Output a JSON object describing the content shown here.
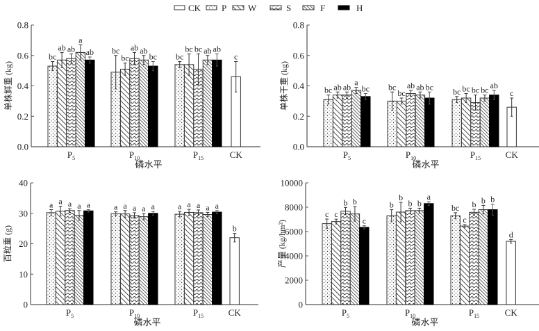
{
  "legend": {
    "items": [
      {
        "label": "CK",
        "pattern": "blank"
      },
      {
        "label": "P",
        "pattern": "dots"
      },
      {
        "label": "W",
        "pattern": "diag"
      },
      {
        "label": "S",
        "pattern": "wave"
      },
      {
        "label": "F",
        "pattern": "diagdense"
      },
      {
        "label": "H",
        "pattern": "solid"
      }
    ]
  },
  "colors": {
    "axis": "#555555",
    "bar_stroke": "#333333",
    "solid": "#000000"
  },
  "chart_data": [
    {
      "type": "bar",
      "ylabel": "单株鲜重 (kg)",
      "xlabel": "磷水平",
      "ylim": [
        0,
        0.8
      ],
      "yticks": [
        "0.0",
        "0.2",
        "0.4",
        "0.6",
        "0.8"
      ],
      "ytick_values": [
        0,
        0.2,
        0.4,
        0.6,
        0.8
      ],
      "groups": [
        {
          "label": "P",
          "sub": "5",
          "series": [
            "P",
            "W",
            "S",
            "F",
            "H"
          ],
          "values": [
            0.53,
            0.57,
            0.58,
            0.62,
            0.57
          ],
          "errors": [
            0.03,
            0.05,
            0.03,
            0.05,
            0.02
          ],
          "letters": [
            "bc",
            "ab",
            "ab",
            "a",
            "ab"
          ]
        },
        {
          "label": "P",
          "sub": "10",
          "series": [
            "P",
            "W",
            "S",
            "F",
            "H"
          ],
          "values": [
            0.49,
            0.51,
            0.58,
            0.57,
            0.53
          ],
          "errors": [
            0.11,
            0.04,
            0.04,
            0.03,
            0.03
          ],
          "letters": [
            "bc",
            "bc",
            "ab",
            "ab",
            "bc"
          ]
        },
        {
          "label": "P",
          "sub": "15",
          "series": [
            "P",
            "W",
            "S",
            "F",
            "H"
          ],
          "values": [
            0.54,
            0.54,
            0.51,
            0.57,
            0.57
          ],
          "errors": [
            0.02,
            0.07,
            0.1,
            0.03,
            0.04
          ],
          "letters": [
            "bc",
            "bc",
            "bc",
            "ab",
            "ab"
          ]
        },
        {
          "label": "CK",
          "sub": "",
          "series": [
            "CK"
          ],
          "values": [
            0.46
          ],
          "errors": [
            0.1
          ],
          "letters": [
            "c"
          ]
        }
      ]
    },
    {
      "type": "bar",
      "ylabel": "单株干重 (kg)",
      "xlabel": "磷水平",
      "ylim": [
        0,
        0.8
      ],
      "yticks": [
        "0.0",
        "0.2",
        "0.4",
        "0.6",
        "0.8"
      ],
      "ytick_values": [
        0,
        0.2,
        0.4,
        0.6,
        0.8
      ],
      "groups": [
        {
          "label": "P",
          "sub": "5",
          "series": [
            "P",
            "W",
            "S",
            "F",
            "H"
          ],
          "values": [
            0.31,
            0.34,
            0.34,
            0.37,
            0.33
          ],
          "errors": [
            0.03,
            0.02,
            0.02,
            0.02,
            0.02
          ],
          "letters": [
            "bc",
            "ab",
            "ab",
            "a",
            "bc"
          ]
        },
        {
          "label": "P",
          "sub": "10",
          "series": [
            "P",
            "W",
            "S",
            "F",
            "H"
          ],
          "values": [
            0.3,
            0.3,
            0.35,
            0.34,
            0.32
          ],
          "errors": [
            0.06,
            0.02,
            0.02,
            0.02,
            0.04
          ],
          "letters": [
            "bc",
            "bc",
            "ab",
            "ab",
            "bc"
          ]
        },
        {
          "label": "P",
          "sub": "15",
          "series": [
            "P",
            "W",
            "S",
            "F",
            "H"
          ],
          "values": [
            0.31,
            0.32,
            0.29,
            0.32,
            0.34
          ],
          "errors": [
            0.02,
            0.03,
            0.05,
            0.02,
            0.03
          ],
          "letters": [
            "bc",
            "bc",
            "bc",
            "bc",
            "ab"
          ]
        },
        {
          "label": "CK",
          "sub": "",
          "series": [
            "CK"
          ],
          "values": [
            0.26
          ],
          "errors": [
            0.06
          ],
          "letters": [
            "c"
          ]
        }
      ]
    },
    {
      "type": "bar",
      "ylabel": "百粒重 (g)",
      "xlabel": "磷水平",
      "ylim": [
        0,
        40
      ],
      "yticks": [
        "0",
        "10",
        "20",
        "30",
        "40"
      ],
      "ytick_values": [
        0,
        10,
        20,
        30,
        40
      ],
      "groups": [
        {
          "label": "P",
          "sub": "5",
          "series": [
            "P",
            "W",
            "S",
            "F",
            "H"
          ],
          "values": [
            30.2,
            30.7,
            30.9,
            29.3,
            30.8
          ],
          "errors": [
            1.0,
            1.6,
            0.6,
            1.6,
            0.4
          ],
          "letters": [
            "a",
            "a",
            "a",
            "a",
            "a"
          ]
        },
        {
          "label": "P",
          "sub": "10",
          "series": [
            "P",
            "W",
            "S",
            "F",
            "H"
          ],
          "values": [
            29.9,
            29.8,
            29.3,
            28.9,
            30.0
          ],
          "errors": [
            0.6,
            1.1,
            0.9,
            1.0,
            0.6
          ],
          "letters": [
            "a",
            "a",
            "a",
            "a",
            "a"
          ]
        },
        {
          "label": "P",
          "sub": "15",
          "series": [
            "P",
            "W",
            "S",
            "F",
            "H"
          ],
          "values": [
            29.7,
            30.3,
            30.2,
            29.6,
            30.4
          ],
          "errors": [
            0.9,
            1.0,
            0.9,
            0.7,
            0.5
          ],
          "letters": [
            "a",
            "a",
            "a",
            "a",
            "a"
          ]
        },
        {
          "label": "CK",
          "sub": "",
          "series": [
            "CK"
          ],
          "values": [
            22.0
          ],
          "errors": [
            1.4
          ],
          "letters": [
            "b"
          ]
        }
      ]
    },
    {
      "type": "bar",
      "ylabel": "产量 (kg/hm²)",
      "xlabel": "磷水平",
      "ylim": [
        0,
        10000
      ],
      "yticks": [
        "0",
        "2000",
        "4000",
        "6000",
        "8000",
        "10000"
      ],
      "ytick_values": [
        0,
        2000,
        4000,
        6000,
        8000,
        10000
      ],
      "groups": [
        {
          "label": "P",
          "sub": "5",
          "series": [
            "P",
            "W",
            "S",
            "F",
            "H"
          ],
          "values": [
            6650,
            6820,
            7680,
            7450,
            6350
          ],
          "errors": [
            380,
            200,
            300,
            600,
            130
          ],
          "letters": [
            "c",
            "c",
            "b",
            "b",
            "c"
          ]
        },
        {
          "label": "P",
          "sub": "10",
          "series": [
            "P",
            "W",
            "S",
            "F",
            "H"
          ],
          "values": [
            7300,
            7600,
            7720,
            7720,
            8300
          ],
          "errors": [
            500,
            800,
            200,
            200,
            150
          ],
          "letters": [
            "b",
            "b",
            "b",
            "b",
            "a"
          ]
        },
        {
          "label": "P",
          "sub": "15",
          "series": [
            "P",
            "W",
            "S",
            "F",
            "H"
          ],
          "values": [
            7300,
            6450,
            7580,
            7800,
            7800
          ],
          "errors": [
            250,
            120,
            250,
            350,
            450
          ],
          "letters": [
            "bc",
            "c",
            "b",
            "b",
            "b"
          ]
        },
        {
          "label": "CK",
          "sub": "",
          "series": [
            "CK"
          ],
          "values": [
            5200
          ],
          "errors": [
            150
          ],
          "letters": [
            "d"
          ]
        }
      ]
    }
  ]
}
